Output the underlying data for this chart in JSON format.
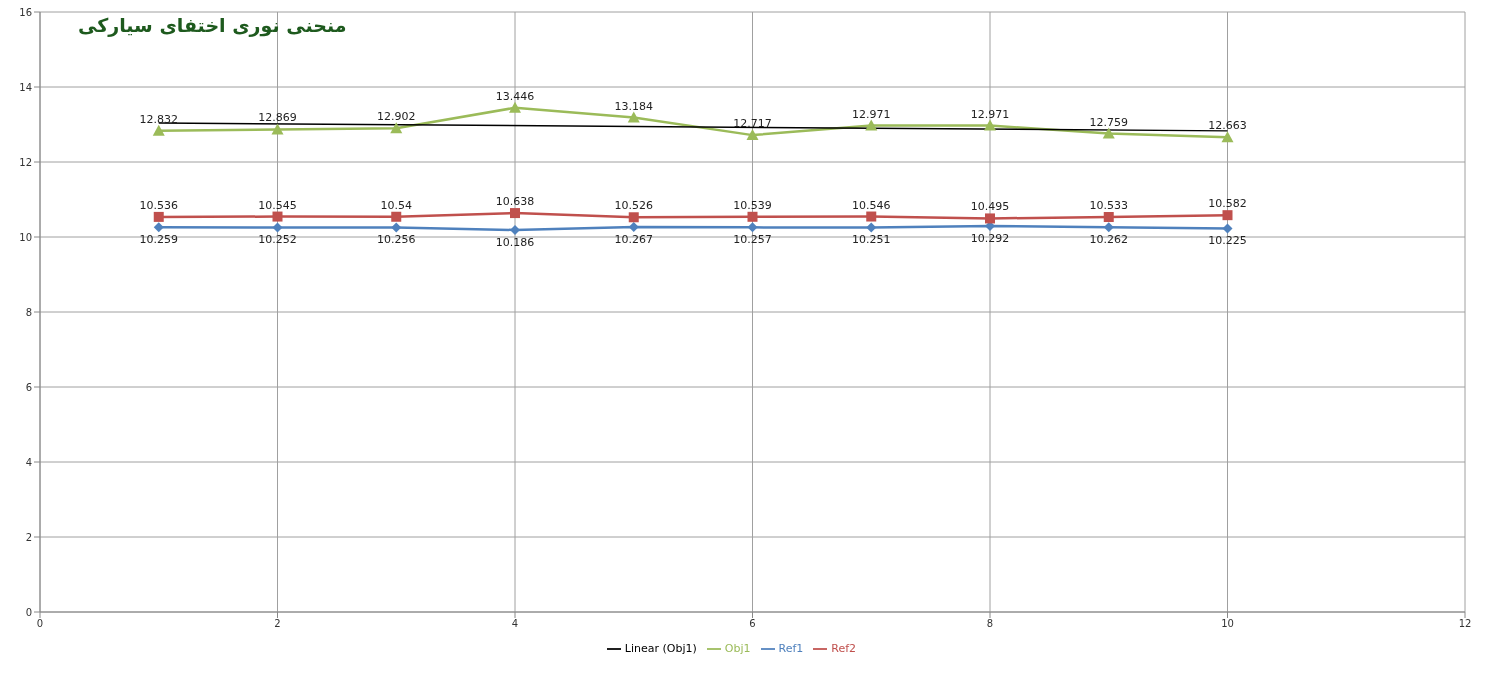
{
  "chart_data": {
    "type": "line",
    "title": "منحنی نوری اختفای سیارکی",
    "x": [
      1,
      2,
      3,
      4,
      5,
      6,
      7,
      8,
      9,
      10
    ],
    "series": [
      {
        "name": "Ref1",
        "color": "#4f81bd",
        "marker": "diamond",
        "values": [
          10.259,
          10.252,
          10.256,
          10.186,
          10.267,
          10.257,
          10.251,
          10.292,
          10.262,
          10.225
        ]
      },
      {
        "name": "Ref2",
        "color": "#c0504d",
        "marker": "square",
        "values": [
          10.536,
          10.545,
          10.54,
          10.638,
          10.526,
          10.539,
          10.546,
          10.495,
          10.533,
          10.582
        ]
      },
      {
        "name": "Obj1",
        "color": "#9bbb59",
        "marker": "triangle",
        "values": [
          12.832,
          12.869,
          12.902,
          13.446,
          13.184,
          12.717,
          12.971,
          12.971,
          12.759,
          12.663
        ]
      },
      {
        "name": "Linear (Obj1)",
        "color": "#000000",
        "marker": "none",
        "data_labels": false,
        "x": [
          1,
          10
        ],
        "values": [
          13.04,
          12.83
        ]
      }
    ],
    "data_labels": true,
    "xlim": [
      0,
      12
    ],
    "xticks": [
      0,
      2,
      4,
      6,
      8,
      10,
      12
    ],
    "ylim": [
      0,
      16
    ],
    "yticks": [
      0,
      2,
      4,
      6,
      8,
      10,
      12,
      14,
      16
    ],
    "grid": true,
    "legend": "bottom"
  }
}
